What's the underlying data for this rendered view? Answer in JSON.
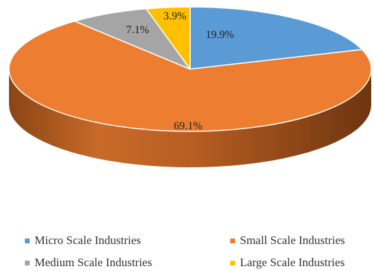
{
  "chart_data": {
    "type": "pie",
    "style": "3d",
    "title": "",
    "slices": [
      {
        "label": "Micro Scale Industries",
        "value": 19.9,
        "value_label": "19.9%",
        "color": "#5b9bd5"
      },
      {
        "label": "Small Scale Industries",
        "value": 69.1,
        "value_label": "69.1%",
        "color": "#ed7d31"
      },
      {
        "label": "Medium Scale Industries",
        "value": 7.1,
        "value_label": "7.1%",
        "color": "#a5a5a5"
      },
      {
        "label": "Large Scale Industries",
        "value": 3.9,
        "value_label": "3.9%",
        "color": "#ffc000"
      }
    ],
    "legend_position": "bottom"
  }
}
